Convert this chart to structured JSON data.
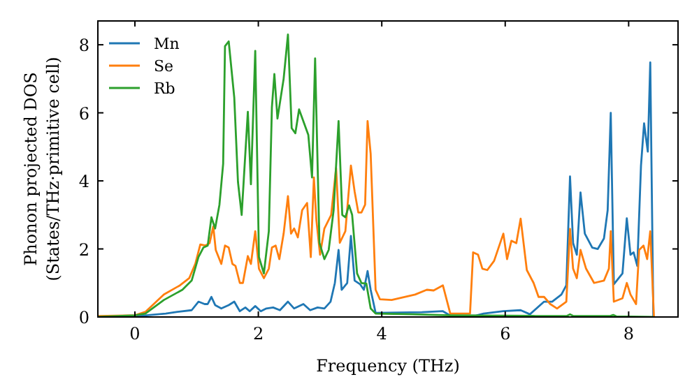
{
  "chart_data": {
    "type": "line",
    "xlabel": "Frequency (THz)",
    "ylabel": "Phonon projected DOS\n(States/THz·primitive cell)",
    "xlim": [
      -0.6,
      8.8
    ],
    "ylim": [
      0,
      8.7
    ],
    "xticks": [
      0,
      2,
      4,
      6,
      8
    ],
    "yticks": [
      0,
      2,
      4,
      6,
      8
    ],
    "legend": "top left",
    "grid": false,
    "line_style": "solid",
    "marker": "none",
    "series": [
      {
        "name": "Mn",
        "color": "#1f77b4",
        "x": [
          -0.6,
          0,
          0.5,
          0.69,
          0.92,
          1.03,
          1.13,
          1.18,
          1.24,
          1.3,
          1.4,
          1.52,
          1.61,
          1.7,
          1.79,
          1.86,
          1.95,
          2.04,
          2.13,
          2.24,
          2.35,
          2.48,
          2.58,
          2.73,
          2.84,
          2.96,
          3.07,
          3.17,
          3.24,
          3.3,
          3.35,
          3.44,
          3.5,
          3.56,
          3.65,
          3.71,
          3.77,
          3.82,
          3.9,
          4.65,
          4.99,
          5.11,
          5.52,
          5.65,
          5.97,
          6.25,
          6.4,
          6.63,
          6.76,
          6.91,
          6.99,
          7.05,
          7.1,
          7.16,
          7.22,
          7.29,
          7.41,
          7.5,
          7.6,
          7.66,
          7.71,
          7.76,
          7.9,
          7.97,
          8.03,
          8.08,
          8.14,
          8.2,
          8.25,
          8.31,
          8.35,
          8.4
        ],
        "values": [
          0,
          0.02,
          0.1,
          0.15,
          0.2,
          0.45,
          0.38,
          0.38,
          0.59,
          0.35,
          0.25,
          0.35,
          0.45,
          0.17,
          0.28,
          0.17,
          0.32,
          0.17,
          0.25,
          0.28,
          0.2,
          0.45,
          0.25,
          0.38,
          0.2,
          0.28,
          0.25,
          0.45,
          1.0,
          1.97,
          0.8,
          1.0,
          2.38,
          1.07,
          0.96,
          0.8,
          1.35,
          0.8,
          0.12,
          0.14,
          0.17,
          0.04,
          0.04,
          0.1,
          0.17,
          0.2,
          0.08,
          0.45,
          0.45,
          0.66,
          0.93,
          4.13,
          2.17,
          1.83,
          3.66,
          2.45,
          2.04,
          2.0,
          2.31,
          3.14,
          6.0,
          0.96,
          1.28,
          2.9,
          1.83,
          1.9,
          1.5,
          4.45,
          5.69,
          4.86,
          7.48,
          0
        ]
      },
      {
        "name": "Se",
        "color": "#ff7f0e",
        "x": [
          -0.6,
          0,
          0.17,
          0.47,
          0.73,
          0.88,
          0.98,
          1.06,
          1.14,
          1.21,
          1.27,
          1.31,
          1.4,
          1.46,
          1.52,
          1.58,
          1.63,
          1.7,
          1.75,
          1.83,
          1.88,
          1.95,
          2.01,
          2.09,
          2.17,
          2.22,
          2.28,
          2.34,
          2.41,
          2.48,
          2.53,
          2.58,
          2.64,
          2.71,
          2.79,
          2.85,
          2.9,
          2.94,
          3.0,
          3.07,
          3.18,
          3.26,
          3.32,
          3.41,
          3.5,
          3.56,
          3.62,
          3.67,
          3.73,
          3.77,
          3.82,
          3.9,
          3.97,
          4.16,
          4.54,
          4.73,
          4.84,
          4.99,
          5.11,
          5.43,
          5.48,
          5.56,
          5.63,
          5.71,
          5.82,
          5.97,
          6.03,
          6.1,
          6.18,
          6.25,
          6.35,
          6.46,
          6.54,
          6.63,
          6.73,
          6.84,
          6.99,
          7.05,
          7.1,
          7.16,
          7.22,
          7.31,
          7.44,
          7.6,
          7.68,
          7.71,
          7.76,
          7.9,
          7.97,
          8.03,
          8.12,
          8.17,
          8.24,
          8.3,
          8.35,
          8.41
        ],
        "values": [
          0.03,
          0.05,
          0.15,
          0.66,
          0.93,
          1.14,
          1.57,
          2.13,
          2.1,
          2.17,
          2.66,
          1.97,
          1.56,
          2.1,
          2.04,
          1.56,
          1.5,
          1.0,
          1.0,
          1.79,
          1.56,
          2.52,
          1.42,
          1.14,
          1.42,
          2.04,
          2.1,
          1.7,
          2.45,
          3.55,
          2.45,
          2.6,
          2.34,
          3.14,
          3.35,
          1.76,
          4.1,
          2.86,
          1.83,
          2.6,
          3.0,
          4.38,
          2.18,
          2.52,
          4.45,
          3.69,
          3.07,
          3.07,
          3.3,
          5.76,
          4.8,
          0.8,
          0.52,
          0.5,
          0.66,
          0.8,
          0.78,
          0.93,
          0.1,
          0.1,
          1.9,
          1.83,
          1.42,
          1.38,
          1.65,
          2.45,
          1.7,
          2.24,
          2.17,
          2.89,
          1.38,
          1.0,
          0.59,
          0.59,
          0.38,
          0.25,
          0.45,
          2.59,
          1.42,
          1.14,
          1.97,
          1.42,
          1.0,
          1.07,
          1.42,
          2.52,
          0.45,
          0.55,
          1.0,
          0.66,
          0.38,
          1.97,
          2.1,
          1.7,
          2.52,
          0
        ]
      },
      {
        "name": "Rb",
        "color": "#2ca02c",
        "x": [
          -0.6,
          0,
          0.17,
          0.47,
          0.77,
          0.92,
          1.03,
          1.11,
          1.18,
          1.24,
          1.3,
          1.37,
          1.43,
          1.46,
          1.52,
          1.61,
          1.67,
          1.73,
          1.83,
          1.88,
          1.95,
          2.01,
          2.09,
          2.17,
          2.22,
          2.26,
          2.31,
          2.41,
          2.48,
          2.54,
          2.6,
          2.66,
          2.81,
          2.87,
          2.92,
          2.99,
          3.07,
          3.14,
          3.22,
          3.3,
          3.36,
          3.41,
          3.47,
          3.52,
          3.6,
          3.67,
          3.75,
          3.82,
          3.9,
          4.5,
          5.1,
          6.5,
          7.0,
          7.05,
          7.1,
          7.7,
          7.75,
          7.8,
          8.4
        ],
        "values": [
          0,
          0.05,
          0.1,
          0.5,
          0.8,
          1.07,
          1.76,
          2.04,
          2.1,
          2.93,
          2.6,
          3.3,
          4.5,
          7.96,
          8.1,
          6.45,
          3.97,
          3.0,
          6.03,
          3.9,
          7.82,
          1.76,
          1.28,
          2.52,
          6.17,
          7.14,
          5.83,
          7.0,
          8.3,
          5.55,
          5.4,
          6.1,
          5.35,
          4.1,
          7.6,
          2.18,
          1.7,
          1.97,
          3.14,
          5.76,
          3.0,
          2.93,
          3.28,
          3.0,
          1.28,
          1.0,
          0.98,
          0.25,
          0.1,
          0.08,
          0.05,
          0.03,
          0.03,
          0.08,
          0.03,
          0.03,
          0.06,
          0.02,
          0
        ]
      }
    ]
  }
}
